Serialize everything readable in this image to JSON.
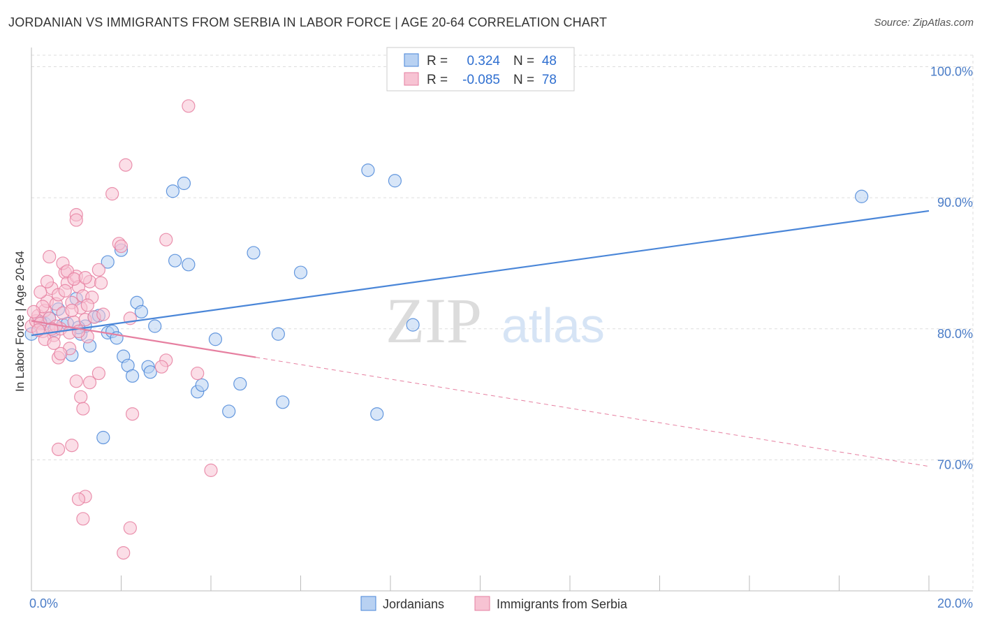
{
  "chart_data": {
    "type": "scatter",
    "title": "JORDANIAN VS IMMIGRANTS FROM SERBIA IN LABOR FORCE | AGE 20-64 CORRELATION CHART",
    "source": "Source: ZipAtlas.com",
    "ylabel": "In Labor Force | Age 20-64",
    "xlabel": "",
    "xlim": [
      0,
      20
    ],
    "ylim": [
      60,
      102
    ],
    "x_tick_labels": [
      "0.0%",
      "20.0%"
    ],
    "y_ticks": [
      70,
      80,
      90,
      100
    ],
    "y_tick_labels": [
      "70.0%",
      "80.0%",
      "90.0%",
      "100.0%"
    ],
    "grid": true,
    "watermark": {
      "zip": "ZIP",
      "atlas": "atlas"
    },
    "legend": {
      "r_label": "R =",
      "n_label": "N =",
      "entries": [
        {
          "name": "Jordanians",
          "r": "0.324",
          "n": "48",
          "color": "#4a86d8",
          "fill": "#b8d1f2"
        },
        {
          "name": "Immigrants from Serbia",
          "r": "-0.085",
          "n": "78",
          "color": "#e67fa0",
          "fill": "#f7c3d3"
        }
      ]
    },
    "series": [
      {
        "name": "Jordanians",
        "color": "#4a86d8",
        "fill": "#b8d1f2",
        "trend": {
          "x0": 0,
          "y0": 79.5,
          "x1": 20,
          "y1": 89.0,
          "dashed_from": null
        },
        "points": [
          [
            0.0,
            79.6
          ],
          [
            0.3,
            80.4
          ],
          [
            0.4,
            80.8
          ],
          [
            0.5,
            79.9
          ],
          [
            0.6,
            81.5
          ],
          [
            0.7,
            80.3
          ],
          [
            0.8,
            80.4
          ],
          [
            0.9,
            78.0
          ],
          [
            1.0,
            82.3
          ],
          [
            1.1,
            79.6
          ],
          [
            1.2,
            80.2
          ],
          [
            1.3,
            78.7
          ],
          [
            1.4,
            80.9
          ],
          [
            1.5,
            81.0
          ],
          [
            1.6,
            71.7
          ],
          [
            1.7,
            85.1
          ],
          [
            1.7,
            79.7
          ],
          [
            1.8,
            79.8
          ],
          [
            1.9,
            79.3
          ],
          [
            2.0,
            86.0
          ],
          [
            2.05,
            77.9
          ],
          [
            2.15,
            77.2
          ],
          [
            2.25,
            76.4
          ],
          [
            2.35,
            82.0
          ],
          [
            2.45,
            81.3
          ],
          [
            2.6,
            77.1
          ],
          [
            2.65,
            76.7
          ],
          [
            2.75,
            80.2
          ],
          [
            3.15,
            90.5
          ],
          [
            3.2,
            85.2
          ],
          [
            3.4,
            91.1
          ],
          [
            3.5,
            84.9
          ],
          [
            3.7,
            75.2
          ],
          [
            3.8,
            75.7
          ],
          [
            4.1,
            79.2
          ],
          [
            4.4,
            73.7
          ],
          [
            4.65,
            75.8
          ],
          [
            4.95,
            85.8
          ],
          [
            5.5,
            79.6
          ],
          [
            5.6,
            74.4
          ],
          [
            6.0,
            84.3
          ],
          [
            7.5,
            92.1
          ],
          [
            7.7,
            73.5
          ],
          [
            8.1,
            91.3
          ],
          [
            8.5,
            80.3
          ],
          [
            18.5,
            90.1
          ],
          [
            0.2,
            80.5
          ],
          [
            1.05,
            80.1
          ]
        ]
      },
      {
        "name": "Immigrants from Serbia",
        "color": "#e67fa0",
        "fill": "#f7c3d3",
        "trend": {
          "x0": 0,
          "y0": 80.6,
          "x1": 20,
          "y1": 69.5,
          "dashed_from": 5.0
        },
        "points": [
          [
            0.0,
            80.2
          ],
          [
            0.1,
            80.6
          ],
          [
            0.15,
            81.0
          ],
          [
            0.2,
            80.4
          ],
          [
            0.25,
            79.8
          ],
          [
            0.3,
            81.4
          ],
          [
            0.35,
            82.1
          ],
          [
            0.4,
            80.8
          ],
          [
            0.45,
            83.1
          ],
          [
            0.5,
            79.5
          ],
          [
            0.55,
            81.9
          ],
          [
            0.6,
            82.6
          ],
          [
            0.65,
            80.0
          ],
          [
            0.7,
            81.2
          ],
          [
            0.75,
            84.3
          ],
          [
            0.8,
            83.5
          ],
          [
            0.85,
            79.7
          ],
          [
            0.9,
            82.0
          ],
          [
            0.95,
            80.5
          ],
          [
            1.0,
            84.0
          ],
          [
            1.05,
            83.2
          ],
          [
            1.1,
            81.6
          ],
          [
            1.15,
            82.5
          ],
          [
            1.2,
            80.7
          ],
          [
            1.25,
            79.4
          ],
          [
            1.3,
            83.6
          ],
          [
            1.35,
            82.4
          ],
          [
            0.4,
            85.5
          ],
          [
            0.7,
            85.0
          ],
          [
            0.8,
            84.4
          ],
          [
            1.5,
            84.5
          ],
          [
            1.55,
            83.5
          ],
          [
            1.0,
            88.7
          ],
          [
            1.0,
            88.3
          ],
          [
            1.8,
            90.3
          ],
          [
            2.1,
            92.5
          ],
          [
            3.5,
            97.0
          ],
          [
            1.95,
            86.5
          ],
          [
            2.0,
            86.3
          ],
          [
            3.0,
            86.8
          ],
          [
            2.2,
            80.8
          ],
          [
            0.6,
            77.8
          ],
          [
            1.0,
            76.0
          ],
          [
            1.3,
            75.9
          ],
          [
            1.5,
            76.6
          ],
          [
            1.1,
            74.8
          ],
          [
            1.15,
            73.9
          ],
          [
            2.25,
            73.5
          ],
          [
            0.6,
            70.8
          ],
          [
            0.9,
            71.1
          ],
          [
            1.2,
            67.2
          ],
          [
            1.05,
            67.0
          ],
          [
            1.15,
            65.5
          ],
          [
            2.2,
            64.8
          ],
          [
            2.05,
            62.9
          ],
          [
            4.0,
            69.2
          ],
          [
            3.7,
            76.6
          ],
          [
            3.0,
            77.6
          ],
          [
            2.9,
            77.1
          ],
          [
            0.3,
            79.2
          ],
          [
            0.5,
            78.9
          ],
          [
            0.85,
            78.5
          ],
          [
            1.25,
            81.8
          ],
          [
            0.2,
            82.8
          ],
          [
            0.35,
            83.6
          ],
          [
            0.9,
            81.4
          ],
          [
            0.55,
            80.2
          ],
          [
            0.25,
            81.7
          ],
          [
            0.15,
            79.9
          ],
          [
            0.05,
            81.3
          ],
          [
            0.65,
            78.1
          ],
          [
            1.4,
            80.9
          ],
          [
            0.75,
            82.9
          ],
          [
            1.05,
            79.8
          ],
          [
            0.45,
            80.0
          ],
          [
            0.95,
            83.8
          ],
          [
            1.2,
            83.9
          ],
          [
            1.6,
            81.1
          ]
        ]
      }
    ]
  }
}
